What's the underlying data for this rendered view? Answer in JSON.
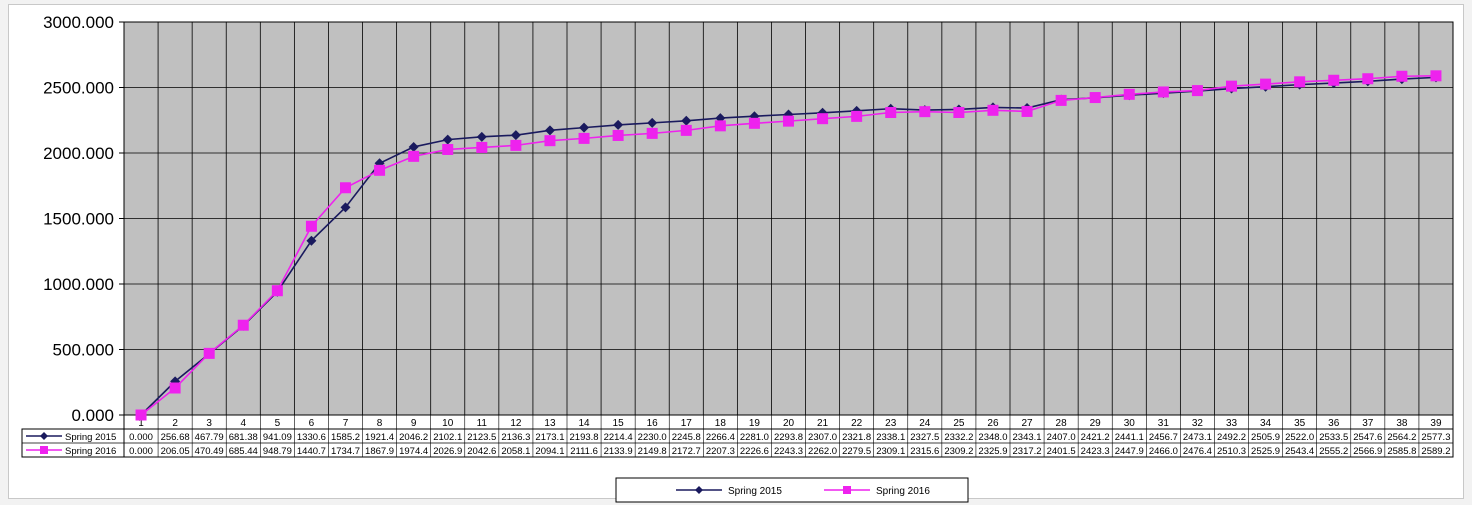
{
  "chart_data": {
    "type": "line",
    "title": "",
    "xlabel": "",
    "ylabel": "",
    "ylim": [
      0,
      3000
    ],
    "y_ticks": [
      "0.000",
      "500.000",
      "1000.000",
      "1500.000",
      "2000.000",
      "2500.000",
      "3000.000"
    ],
    "grid": true,
    "legend_position": "bottom",
    "categories": [
      "1",
      "2",
      "3",
      "4",
      "5",
      "6",
      "7",
      "8",
      "9",
      "10",
      "11",
      "12",
      "13",
      "14",
      "15",
      "16",
      "17",
      "18",
      "19",
      "20",
      "21",
      "22",
      "23",
      "24",
      "25",
      "26",
      "27",
      "28",
      "29",
      "30",
      "31",
      "32",
      "33",
      "34",
      "35",
      "36",
      "37",
      "38",
      "39"
    ],
    "series": [
      {
        "name": "Spring 2015",
        "color": "#1a1a5e",
        "marker": "diamond",
        "values": [
          0.0,
          256.68,
          467.79,
          681.38,
          941.09,
          1330.6,
          1585.2,
          1921.4,
          2046.2,
          2102.1,
          2123.5,
          2136.3,
          2173.1,
          2193.8,
          2214.4,
          2230.0,
          2245.8,
          2266.4,
          2281.0,
          2293.8,
          2307.0,
          2321.8,
          2338.1,
          2327.5,
          2332.2,
          2348.0,
          2343.1,
          2407.0,
          2421.2,
          2441.1,
          2456.7,
          2473.1,
          2492.2,
          2505.9,
          2522.0,
          2533.5,
          2547.6,
          2564.2,
          2577.3
        ],
        "labels": [
          "0.000",
          "256.68",
          "467.79",
          "681.38",
          "941.09",
          "1330.6",
          "1585.2",
          "1921.4",
          "2046.2",
          "2102.1",
          "2123.5",
          "2136.3",
          "2173.1",
          "2193.8",
          "2214.4",
          "2230.0",
          "2245.8",
          "2266.4",
          "2281.0",
          "2293.8",
          "2307.0",
          "2321.8",
          "2338.1",
          "2327.5",
          "2332.2",
          "2348.0",
          "2343.1",
          "2407.0",
          "2421.2",
          "2441.1",
          "2456.7",
          "2473.1",
          "2492.2",
          "2505.9",
          "2522.0",
          "2533.5",
          "2547.6",
          "2564.2",
          "2577.3"
        ]
      },
      {
        "name": "Spring 2016",
        "color": "#ee22ee",
        "marker": "square",
        "values": [
          0.0,
          206.05,
          470.49,
          685.44,
          948.79,
          1440.7,
          1734.7,
          1867.9,
          1974.4,
          2026.9,
          2042.6,
          2058.1,
          2094.1,
          2111.6,
          2133.9,
          2149.8,
          2172.7,
          2207.3,
          2226.6,
          2243.3,
          2262.0,
          2279.5,
          2309.1,
          2315.6,
          2309.2,
          2325.9,
          2317.2,
          2401.5,
          2423.3,
          2447.9,
          2466.0,
          2476.4,
          2510.3,
          2525.9,
          2543.4,
          2555.2,
          2566.9,
          2585.8,
          2589.2
        ],
        "labels": [
          "0.000",
          "206.05",
          "470.49",
          "685.44",
          "948.79",
          "1440.7",
          "1734.7",
          "1867.9",
          "1974.4",
          "2026.9",
          "2042.6",
          "2058.1",
          "2094.1",
          "2111.6",
          "2133.9",
          "2149.8",
          "2172.7",
          "2207.3",
          "2226.6",
          "2243.3",
          "2262.0",
          "2279.5",
          "2309.1",
          "2315.6",
          "2309.2",
          "2325.9",
          "2317.2",
          "2401.5",
          "2423.3",
          "2447.9",
          "2466.0",
          "2476.4",
          "2510.3",
          "2525.9",
          "2543.4",
          "2555.2",
          "2566.9",
          "2585.8",
          "2589.2"
        ]
      }
    ]
  }
}
